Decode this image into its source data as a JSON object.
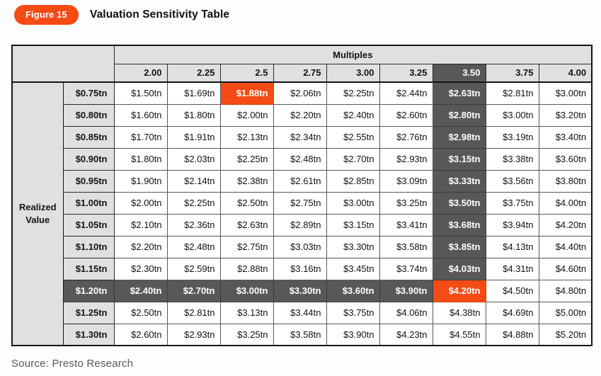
{
  "figure_badge": "Figure 15",
  "title": "Valuation Sensitivity Table",
  "source": "Source: Presto Research",
  "colors": {
    "accent_orange": "#F64B15",
    "highlight_dark_gray": "#58585A",
    "header_light_gray": "#E0E0E0"
  },
  "highlights": {
    "column": "3.50",
    "row": "$1.20tn",
    "orange_cells": [
      {
        "row": "$0.75tn",
        "column": "2.5",
        "value": "$1.88tn"
      },
      {
        "row": "$1.20tn",
        "column": "3.50",
        "value": "$4.20tn"
      }
    ]
  },
  "chart_data": {
    "type": "table",
    "title": "Valuation Sensitivity Table",
    "column_group_label": "Multiples",
    "row_group_label": "Realized Value",
    "columns": [
      "2.00",
      "2.25",
      "2.5",
      "2.75",
      "3.00",
      "3.25",
      "3.50",
      "3.75",
      "4.00"
    ],
    "rows": [
      {
        "label": "$0.75tn",
        "values": [
          "$1.50tn",
          "$1.69tn",
          "$1.88tn",
          "$2.06tn",
          "$2.25tn",
          "$2.44tn",
          "$2.63tn",
          "$2.81tn",
          "$3.00tn"
        ]
      },
      {
        "label": "$0.80tn",
        "values": [
          "$1.60tn",
          "$1.80tn",
          "$2.00tn",
          "$2.20tn",
          "$2.40tn",
          "$2.60tn",
          "$2.80tn",
          "$3.00tn",
          "$3.20tn"
        ]
      },
      {
        "label": "$0.85tn",
        "values": [
          "$1.70tn",
          "$1.91tn",
          "$2.13tn",
          "$2.34tn",
          "$2.55tn",
          "$2.76tn",
          "$2.98tn",
          "$3.19tn",
          "$3.40tn"
        ]
      },
      {
        "label": "$0.90tn",
        "values": [
          "$1.80tn",
          "$2.03tn",
          "$2.25tn",
          "$2.48tn",
          "$2.70tn",
          "$2.93tn",
          "$3.15tn",
          "$3.38tn",
          "$3.60tn"
        ]
      },
      {
        "label": "$0.95tn",
        "values": [
          "$1.90tn",
          "$2.14tn",
          "$2.38tn",
          "$2.61tn",
          "$2.85tn",
          "$3.09tn",
          "$3.33tn",
          "$3.56tn",
          "$3.80tn"
        ]
      },
      {
        "label": "$1.00tn",
        "values": [
          "$2.00tn",
          "$2.25tn",
          "$2.50tn",
          "$2.75tn",
          "$3.00tn",
          "$3.25tn",
          "$3.50tn",
          "$3.75tn",
          "$4.00tn"
        ]
      },
      {
        "label": "$1.05tn",
        "values": [
          "$2.10tn",
          "$2.36tn",
          "$2.63tn",
          "$2.89tn",
          "$3.15tn",
          "$3.41tn",
          "$3.68tn",
          "$3.94tn",
          "$4.20tn"
        ]
      },
      {
        "label": "$1.10tn",
        "values": [
          "$2.20tn",
          "$2.48tn",
          "$2.75tn",
          "$3.03tn",
          "$3.30tn",
          "$3.58tn",
          "$3.85tn",
          "$4.13tn",
          "$4.40tn"
        ]
      },
      {
        "label": "$1.15tn",
        "values": [
          "$2.30tn",
          "$2.59tn",
          "$2.88tn",
          "$3.16tn",
          "$3.45tn",
          "$3.74tn",
          "$4.03tn",
          "$4.31tn",
          "$4.60tn"
        ]
      },
      {
        "label": "$1.20tn",
        "values": [
          "$2.40tn",
          "$2.70tn",
          "$3.00tn",
          "$3.30tn",
          "$3.60tn",
          "$3.90tn",
          "$4.20tn",
          "$4.50tn",
          "$4.80tn"
        ]
      },
      {
        "label": "$1.25tn",
        "values": [
          "$2.50tn",
          "$2.81tn",
          "$3.13tn",
          "$3.44tn",
          "$3.75tn",
          "$4.06tn",
          "$4.38tn",
          "$4.69tn",
          "$5.00tn"
        ]
      },
      {
        "label": "$1.30tn",
        "values": [
          "$2.60tn",
          "$2.93tn",
          "$3.25tn",
          "$3.58tn",
          "$3.90tn",
          "$4.23tn",
          "$4.55tn",
          "$4.88tn",
          "$5.20tn"
        ]
      }
    ]
  }
}
